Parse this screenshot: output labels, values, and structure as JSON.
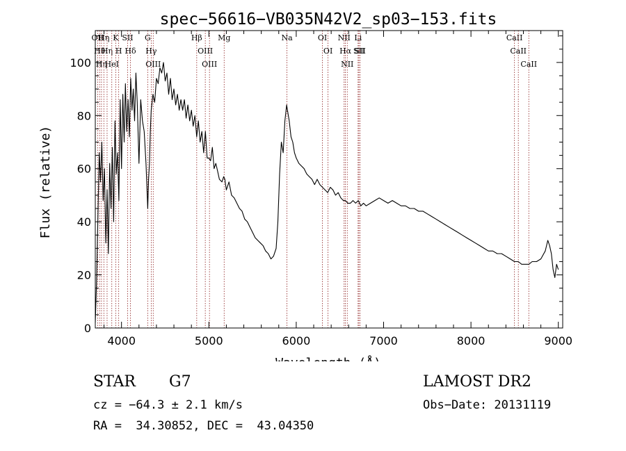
{
  "chart_data": {
    "type": "line",
    "title": "spec−56616−VB035N42V2_sp03−153.fits",
    "xlabel": "Wavelength (Å)",
    "ylabel": "Flux (relative)",
    "xlim": [
      3700,
      9050
    ],
    "ylim": [
      0,
      112
    ],
    "x_ticks": [
      4000,
      5000,
      6000,
      7000,
      8000,
      9000
    ],
    "y_ticks": [
      0,
      20,
      40,
      60,
      80,
      100
    ],
    "grid": false,
    "series": [
      {
        "x": [
          3700,
          3715,
          3730,
          3745,
          3760,
          3775,
          3790,
          3805,
          3820,
          3835,
          3850,
          3865,
          3880,
          3895,
          3910,
          3925,
          3940,
          3955,
          3970,
          3985,
          4000,
          4015,
          4030,
          4045,
          4060,
          4075,
          4090,
          4105,
          4120,
          4135,
          4150,
          4165,
          4180,
          4200,
          4220,
          4240,
          4260,
          4280,
          4300,
          4310,
          4320,
          4330,
          4340,
          4360,
          4380,
          4400,
          4420,
          4440,
          4460,
          4480,
          4500,
          4520,
          4540,
          4560,
          4580,
          4600,
          4620,
          4640,
          4660,
          4680,
          4700,
          4720,
          4740,
          4760,
          4780,
          4800,
          4820,
          4840,
          4861,
          4880,
          4900,
          4920,
          4940,
          4960,
          4980,
          5000,
          5020,
          5040,
          5060,
          5080,
          5100,
          5120,
          5150,
          5170,
          5183,
          5200,
          5230,
          5260,
          5290,
          5320,
          5350,
          5380,
          5410,
          5440,
          5470,
          5500,
          5530,
          5560,
          5590,
          5620,
          5650,
          5680,
          5710,
          5740,
          5770,
          5790,
          5810,
          5830,
          5850,
          5870,
          5890,
          5900,
          5920,
          5940,
          5960,
          5980,
          6000,
          6030,
          6060,
          6090,
          6120,
          6150,
          6180,
          6210,
          6240,
          6270,
          6300,
          6330,
          6360,
          6390,
          6420,
          6450,
          6480,
          6510,
          6540,
          6563,
          6590,
          6620,
          6650,
          6680,
          6710,
          6740,
          6770,
          6800,
          6850,
          6900,
          6950,
          7000,
          7050,
          7100,
          7150,
          7200,
          7250,
          7300,
          7350,
          7400,
          7450,
          7500,
          7550,
          7600,
          7650,
          7700,
          7750,
          7800,
          7850,
          7900,
          7950,
          8000,
          8050,
          8100,
          8150,
          8200,
          8250,
          8300,
          8350,
          8400,
          8450,
          8498,
          8542,
          8580,
          8620,
          8662,
          8700,
          8750,
          8800,
          8850,
          8880,
          8900,
          8920,
          8940,
          8960,
          8980,
          9000
        ],
        "y": [
          2,
          18,
          42,
          66,
          55,
          70,
          48,
          60,
          32,
          52,
          28,
          62,
          45,
          68,
          40,
          78,
          58,
          66,
          48,
          86,
          60,
          88,
          70,
          92,
          74,
          86,
          72,
          94,
          82,
          90,
          78,
          96,
          85,
          62,
          86,
          78,
          74,
          62,
          45,
          56,
          62,
          74,
          82,
          88,
          85,
          94,
          92,
          98,
          96,
          100,
          93,
          96,
          88,
          94,
          86,
          90,
          84,
          88,
          82,
          86,
          82,
          86,
          79,
          84,
          78,
          82,
          76,
          80,
          72,
          78,
          70,
          74,
          66,
          74,
          64,
          64,
          63,
          68,
          60,
          62,
          59,
          56,
          55,
          57,
          56,
          52,
          55,
          50,
          49,
          47,
          45,
          44,
          41,
          40,
          38,
          36,
          34,
          33,
          32,
          31,
          29,
          28,
          26,
          27,
          30,
          40,
          58,
          70,
          66,
          78,
          84,
          82,
          78,
          72,
          70,
          66,
          64,
          62,
          61,
          60,
          58,
          57,
          56,
          54,
          56,
          54,
          53,
          52,
          51,
          53,
          52,
          50,
          51,
          49,
          48,
          48,
          47,
          47,
          48,
          47,
          48,
          46,
          47,
          46,
          47,
          48,
          49,
          48,
          47,
          48,
          47,
          46,
          46,
          45,
          45,
          44,
          44,
          43,
          42,
          41,
          40,
          39,
          38,
          37,
          36,
          35,
          34,
          33,
          32,
          31,
          30,
          29,
          29,
          28,
          28,
          27,
          26,
          25,
          25,
          24,
          24,
          24,
          25,
          25,
          26,
          29,
          33,
          31,
          28,
          22,
          19,
          24,
          22
        ]
      }
    ],
    "lines": [
      {
        "wavelength": 3727,
        "label": "OII"
      },
      {
        "wavelength": 3750,
        "label": "Hθ"
      },
      {
        "wavelength": 3771,
        "label": "Hη"
      },
      {
        "wavelength": 3798,
        "label": "Hη"
      },
      {
        "wavelength": 3835,
        "label": "Hη"
      },
      {
        "wavelength": 3889,
        "label": "HeI"
      },
      {
        "wavelength": 3934,
        "label": "K"
      },
      {
        "wavelength": 3968,
        "label": "H"
      },
      {
        "wavelength": 4070,
        "label": "SII"
      },
      {
        "wavelength": 4102,
        "label": "Hδ"
      },
      {
        "wavelength": 4300,
        "label": "G"
      },
      {
        "wavelength": 4340,
        "label": "Hγ"
      },
      {
        "wavelength": 4363,
        "label": "OIII"
      },
      {
        "wavelength": 4861,
        "label": "Hβ"
      },
      {
        "wavelength": 4959,
        "label": "OIII"
      },
      {
        "wavelength": 5007,
        "label": "OIII"
      },
      {
        "wavelength": 5175,
        "label": "Mg"
      },
      {
        "wavelength": 5894,
        "label": "Na"
      },
      {
        "wavelength": 6300,
        "label": "OI"
      },
      {
        "wavelength": 6364,
        "label": "OI"
      },
      {
        "wavelength": 6548,
        "label": "NII"
      },
      {
        "wavelength": 6563,
        "label": "Hα"
      },
      {
        "wavelength": 6584,
        "label": "NII"
      },
      {
        "wavelength": 6708,
        "label": "Li"
      },
      {
        "wavelength": 6717,
        "label": "SII"
      },
      {
        "wavelength": 6731,
        "label": "SII"
      },
      {
        "wavelength": 8498,
        "label": "CaII"
      },
      {
        "wavelength": 8542,
        "label": "CaII"
      },
      {
        "wavelength": 8662,
        "label": "CaII"
      }
    ],
    "line_color": "#000000",
    "marker_color": "#8b1a1a"
  },
  "info": {
    "class_label": "STAR",
    "subclass": "G7",
    "survey": "LAMOST DR2",
    "redshift_text": "cz = −64.3 ± 2.1 km/s",
    "obs_date_text": "Obs−Date: 20131119",
    "coords_text": "RA =  34.30852, DEC =  43.04350"
  }
}
